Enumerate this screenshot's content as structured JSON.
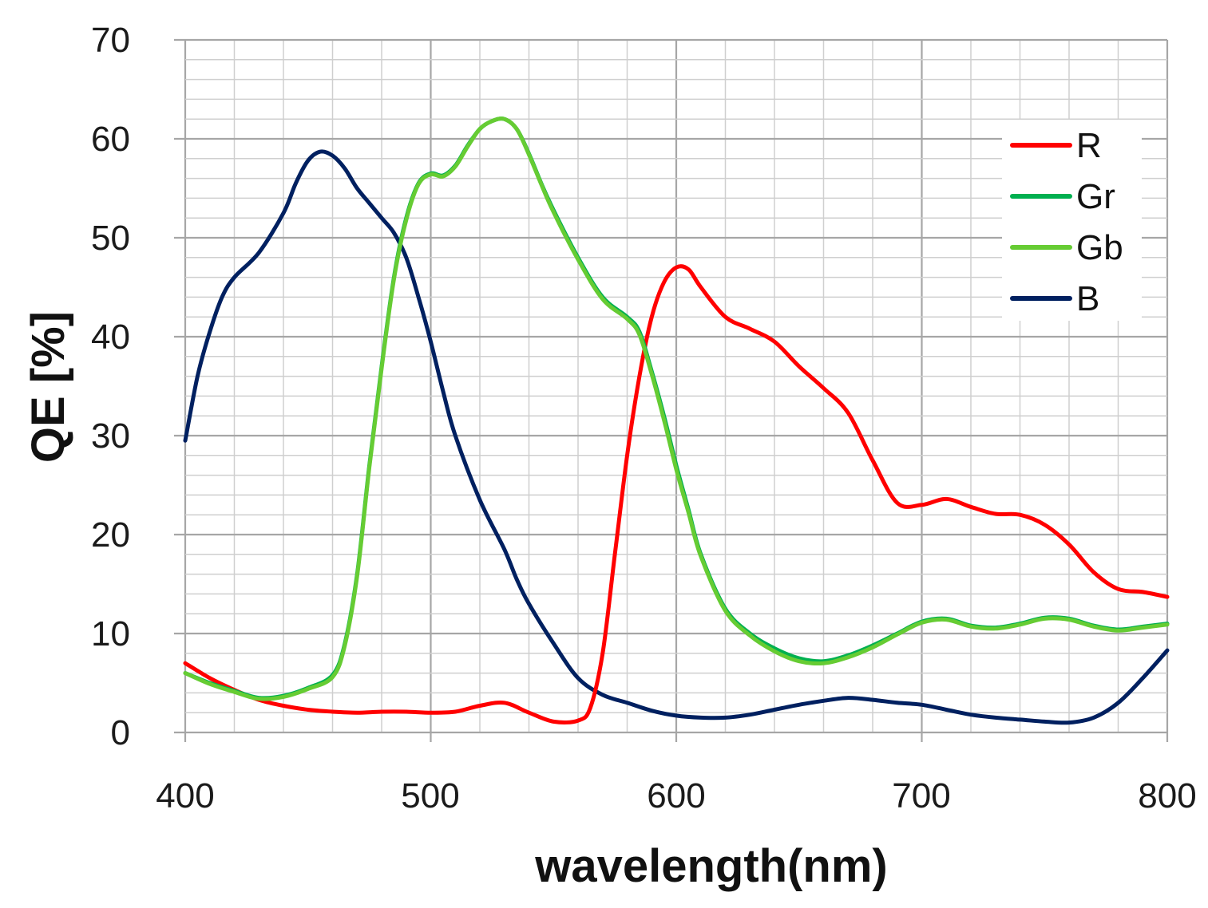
{
  "chart_data": {
    "type": "line",
    "title": "",
    "xlabel": "wavelength(nm)",
    "ylabel": "QE [%]",
    "xlim": [
      400,
      800
    ],
    "ylim": [
      0,
      70
    ],
    "x_ticks": [
      "400",
      "500",
      "600",
      "700",
      "800"
    ],
    "y_ticks": [
      "0",
      "10",
      "20",
      "30",
      "40",
      "50",
      "60",
      "70"
    ],
    "grid": true,
    "legend_position": "top-right",
    "series": [
      {
        "name": "R",
        "color": "#ff0000",
        "points": [
          [
            400,
            7.0
          ],
          [
            410,
            5.5
          ],
          [
            420,
            4.3
          ],
          [
            430,
            3.3
          ],
          [
            440,
            2.7
          ],
          [
            450,
            2.3
          ],
          [
            460,
            2.1
          ],
          [
            470,
            2.0
          ],
          [
            480,
            2.1
          ],
          [
            490,
            2.1
          ],
          [
            500,
            2.0
          ],
          [
            510,
            2.1
          ],
          [
            520,
            2.7
          ],
          [
            530,
            3.0
          ],
          [
            540,
            2.0
          ],
          [
            550,
            1.1
          ],
          [
            560,
            1.2
          ],
          [
            565,
            2.5
          ],
          [
            570,
            8.0
          ],
          [
            575,
            18.0
          ],
          [
            580,
            28.0
          ],
          [
            585,
            36.0
          ],
          [
            590,
            42.0
          ],
          [
            595,
            45.5
          ],
          [
            600,
            47.0
          ],
          [
            605,
            46.8
          ],
          [
            610,
            45.0
          ],
          [
            620,
            42.0
          ],
          [
            630,
            40.8
          ],
          [
            640,
            39.5
          ],
          [
            650,
            37.0
          ],
          [
            660,
            34.8
          ],
          [
            670,
            32.3
          ],
          [
            680,
            27.5
          ],
          [
            690,
            23.2
          ],
          [
            700,
            23.0
          ],
          [
            710,
            23.6
          ],
          [
            720,
            22.8
          ],
          [
            730,
            22.1
          ],
          [
            740,
            22.0
          ],
          [
            750,
            21.0
          ],
          [
            760,
            19.0
          ],
          [
            770,
            16.2
          ],
          [
            780,
            14.5
          ],
          [
            790,
            14.2
          ],
          [
            800,
            13.7
          ]
        ]
      },
      {
        "name": "Gr",
        "color": "#00b050",
        "points": [
          [
            400,
            6.0
          ],
          [
            410,
            5.0
          ],
          [
            420,
            4.2
          ],
          [
            430,
            3.5
          ],
          [
            440,
            3.7
          ],
          [
            450,
            4.5
          ],
          [
            460,
            5.8
          ],
          [
            465,
            9.0
          ],
          [
            470,
            16.0
          ],
          [
            475,
            27.0
          ],
          [
            480,
            37.0
          ],
          [
            485,
            46.0
          ],
          [
            490,
            52.0
          ],
          [
            495,
            55.5
          ],
          [
            500,
            56.5
          ],
          [
            505,
            56.3
          ],
          [
            510,
            57.3
          ],
          [
            515,
            59.3
          ],
          [
            520,
            61.0
          ],
          [
            525,
            61.8
          ],
          [
            530,
            62.0
          ],
          [
            535,
            61.0
          ],
          [
            540,
            58.5
          ],
          [
            545,
            55.5
          ],
          [
            550,
            52.8
          ],
          [
            560,
            48.0
          ],
          [
            570,
            44.0
          ],
          [
            580,
            42.0
          ],
          [
            585,
            40.5
          ],
          [
            590,
            36.5
          ],
          [
            595,
            32.0
          ],
          [
            600,
            27.0
          ],
          [
            605,
            22.5
          ],
          [
            610,
            18.0
          ],
          [
            620,
            12.5
          ],
          [
            630,
            10.0
          ],
          [
            640,
            8.5
          ],
          [
            650,
            7.5
          ],
          [
            660,
            7.2
          ],
          [
            670,
            7.8
          ],
          [
            680,
            8.8
          ],
          [
            690,
            10.0
          ],
          [
            700,
            11.2
          ],
          [
            710,
            11.5
          ],
          [
            720,
            10.8
          ],
          [
            730,
            10.6
          ],
          [
            740,
            11.0
          ],
          [
            750,
            11.6
          ],
          [
            760,
            11.5
          ],
          [
            770,
            10.8
          ],
          [
            780,
            10.4
          ],
          [
            790,
            10.7
          ],
          [
            800,
            11.0
          ]
        ]
      },
      {
        "name": "Gb",
        "color": "#66cc33",
        "points": [
          [
            400,
            6.0
          ],
          [
            410,
            4.9
          ],
          [
            420,
            4.1
          ],
          [
            430,
            3.4
          ],
          [
            440,
            3.6
          ],
          [
            450,
            4.4
          ],
          [
            460,
            5.6
          ],
          [
            465,
            8.8
          ],
          [
            470,
            15.8
          ],
          [
            475,
            26.8
          ],
          [
            480,
            36.8
          ],
          [
            485,
            45.8
          ],
          [
            490,
            51.8
          ],
          [
            495,
            55.4
          ],
          [
            500,
            56.4
          ],
          [
            505,
            56.2
          ],
          [
            510,
            57.2
          ],
          [
            515,
            59.2
          ],
          [
            520,
            61.0
          ],
          [
            525,
            61.8
          ],
          [
            530,
            62.0
          ],
          [
            535,
            61.0
          ],
          [
            540,
            58.4
          ],
          [
            545,
            55.4
          ],
          [
            550,
            52.6
          ],
          [
            560,
            47.8
          ],
          [
            570,
            43.8
          ],
          [
            580,
            41.8
          ],
          [
            585,
            40.2
          ],
          [
            590,
            36.2
          ],
          [
            595,
            31.6
          ],
          [
            600,
            26.6
          ],
          [
            605,
            22.2
          ],
          [
            610,
            17.8
          ],
          [
            620,
            12.3
          ],
          [
            630,
            9.8
          ],
          [
            640,
            8.2
          ],
          [
            650,
            7.2
          ],
          [
            660,
            7.0
          ],
          [
            670,
            7.6
          ],
          [
            680,
            8.6
          ],
          [
            690,
            9.9
          ],
          [
            700,
            11.1
          ],
          [
            710,
            11.4
          ],
          [
            720,
            10.7
          ],
          [
            730,
            10.5
          ],
          [
            740,
            10.9
          ],
          [
            750,
            11.5
          ],
          [
            760,
            11.4
          ],
          [
            770,
            10.7
          ],
          [
            780,
            10.3
          ],
          [
            790,
            10.6
          ],
          [
            800,
            10.9
          ]
        ]
      },
      {
        "name": "B",
        "color": "#002060",
        "points": [
          [
            400,
            29.5
          ],
          [
            405,
            36.0
          ],
          [
            410,
            40.5
          ],
          [
            415,
            44.0
          ],
          [
            420,
            46.0
          ],
          [
            430,
            48.5
          ],
          [
            440,
            52.5
          ],
          [
            445,
            55.5
          ],
          [
            450,
            57.8
          ],
          [
            455,
            58.7
          ],
          [
            460,
            58.3
          ],
          [
            465,
            57.0
          ],
          [
            470,
            55.0
          ],
          [
            475,
            53.5
          ],
          [
            480,
            52.0
          ],
          [
            485,
            50.5
          ],
          [
            490,
            48.0
          ],
          [
            495,
            44.0
          ],
          [
            500,
            39.5
          ],
          [
            505,
            34.5
          ],
          [
            510,
            30.0
          ],
          [
            520,
            23.5
          ],
          [
            530,
            18.5
          ],
          [
            535,
            15.5
          ],
          [
            540,
            13.0
          ],
          [
            550,
            9.0
          ],
          [
            560,
            5.5
          ],
          [
            570,
            3.8
          ],
          [
            580,
            3.0
          ],
          [
            590,
            2.2
          ],
          [
            600,
            1.7
          ],
          [
            610,
            1.5
          ],
          [
            620,
            1.5
          ],
          [
            630,
            1.8
          ],
          [
            640,
            2.3
          ],
          [
            650,
            2.8
          ],
          [
            660,
            3.2
          ],
          [
            670,
            3.5
          ],
          [
            680,
            3.3
          ],
          [
            690,
            3.0
          ],
          [
            700,
            2.8
          ],
          [
            710,
            2.3
          ],
          [
            720,
            1.8
          ],
          [
            730,
            1.5
          ],
          [
            740,
            1.3
          ],
          [
            750,
            1.1
          ],
          [
            760,
            1.0
          ],
          [
            770,
            1.5
          ],
          [
            780,
            3.0
          ],
          [
            790,
            5.5
          ],
          [
            800,
            8.3
          ]
        ]
      }
    ]
  }
}
